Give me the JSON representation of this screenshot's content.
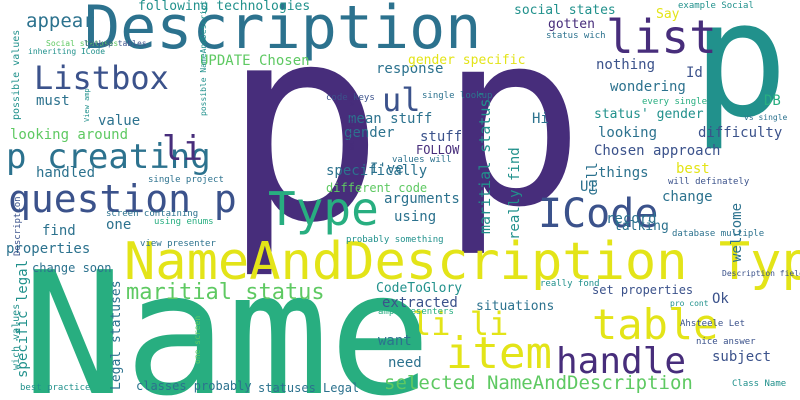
{
  "palette": {
    "background": "#ffffff",
    "dark_purple": "#472d7b",
    "indigo": "#3b528b",
    "blue": "#2c728e",
    "teal": "#21918c",
    "green_teal": "#28ae80",
    "green": "#5ec962",
    "yellow_green": "#addc30",
    "yellow": "#e3e418"
  },
  "words": [
    "Name",
    "p",
    "p",
    "p",
    "NameAndDescription Type",
    "Description",
    "Type",
    "list",
    "table",
    "item",
    "handle",
    "ICode",
    "question p",
    "p creating",
    "Listbox",
    "ul",
    "li",
    "li li",
    "maritial status",
    "selected NameAndDescription",
    "Description",
    "following technologies",
    "appear",
    "social states",
    "example Social",
    "Say",
    "gotten",
    "status wich",
    "Id",
    "wondering",
    "DB",
    "Hi",
    "nothing",
    "difficulty",
    "response",
    "mean stuff",
    "looking around",
    "value",
    "must",
    "UPDATE Chosen",
    "gender specific",
    "maritial status'",
    "status' gender",
    "looking",
    "Chosen approach",
    "gender",
    "stuff",
    "FOLLOW",
    "specifically",
    "things",
    "best",
    "handled",
    "I've",
    "different code",
    "arguments",
    "using",
    "record",
    "change",
    "welcome",
    "UI",
    "call",
    "find",
    "one",
    "properties",
    "change soon",
    "talking",
    "database multiple",
    "set properties",
    "Ok",
    "really find",
    "specific legal",
    "CodeToGlory",
    "extracted",
    "situations",
    "want",
    "need",
    "subject",
    "classes probably",
    "statuses Legal",
    "best practice",
    "nice answer",
    "Ahsteele Let",
    "Legal statuses",
    "single project",
    "screen containing",
    "using enums",
    "view presenter",
    "probably something",
    "really fond",
    "code keys",
    "single lookup",
    "values will",
    "wich values",
    "every single",
    "vs single",
    "will definately",
    "Description field",
    "multiple vs",
    "Class Name",
    "pro cont",
    "amp Presenters",
    "one screen",
    "possible values",
    "inheriting ICode",
    "Social statuses",
    "lookup tables",
    "View amp",
    "possible NameAndDescription",
    "Let refine"
  ]
}
